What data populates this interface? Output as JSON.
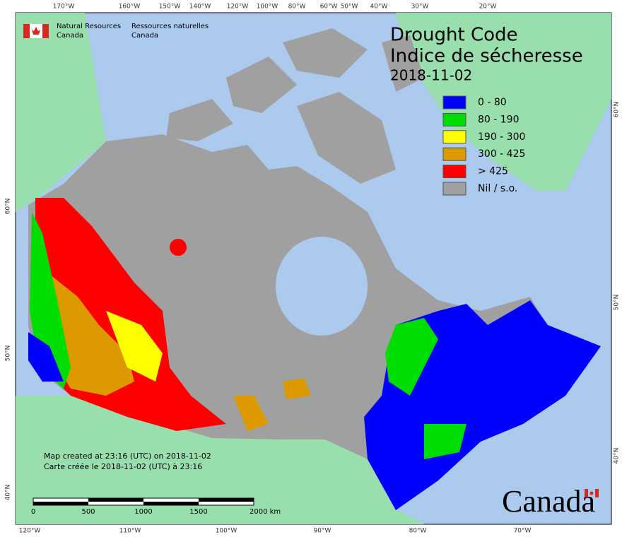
{
  "header": {
    "agency_en": [
      "Natural Resources",
      "Canada"
    ],
    "agency_fr": [
      "Ressources naturelles",
      "Canada"
    ]
  },
  "title": {
    "en": "Drought Code",
    "fr": "Indice de sécheresse",
    "date": "2018-11-02"
  },
  "legend": [
    {
      "label": "0 - 80",
      "color": "#0000ff"
    },
    {
      "label": "80 - 190",
      "color": "#00dd00"
    },
    {
      "label": "190 - 300",
      "color": "#ffff00"
    },
    {
      "label": "300 - 425",
      "color": "#dd9900"
    },
    {
      "label": "> 425",
      "color": "#ff0000"
    },
    {
      "label": "Nil / s.o.",
      "color": "#a0a0a0"
    }
  ],
  "graticule": {
    "top": [
      "170°W",
      "160°W",
      "150°W",
      "140°W",
      "120°W",
      "100°W",
      "80°W",
      "60°W",
      "50°W",
      "40°W",
      "30°W",
      "20°W"
    ],
    "bottom": [
      "120°W",
      "110°W",
      "100°W",
      "90°W",
      "80°W",
      "70°W"
    ],
    "left": [
      "60°N",
      "50°N",
      "40°N"
    ],
    "right": [
      "60°N",
      "50°N",
      "40°N"
    ]
  },
  "scale": [
    "0",
    "500",
    "1000",
    "1500",
    "2000  km"
  ],
  "footer": [
    "Map created at 23:16 (UTC) on 2018-11-02",
    "Carte créée le 2018-11-02 (UTC) à 23:16"
  ],
  "wordmark": "Canada"
}
